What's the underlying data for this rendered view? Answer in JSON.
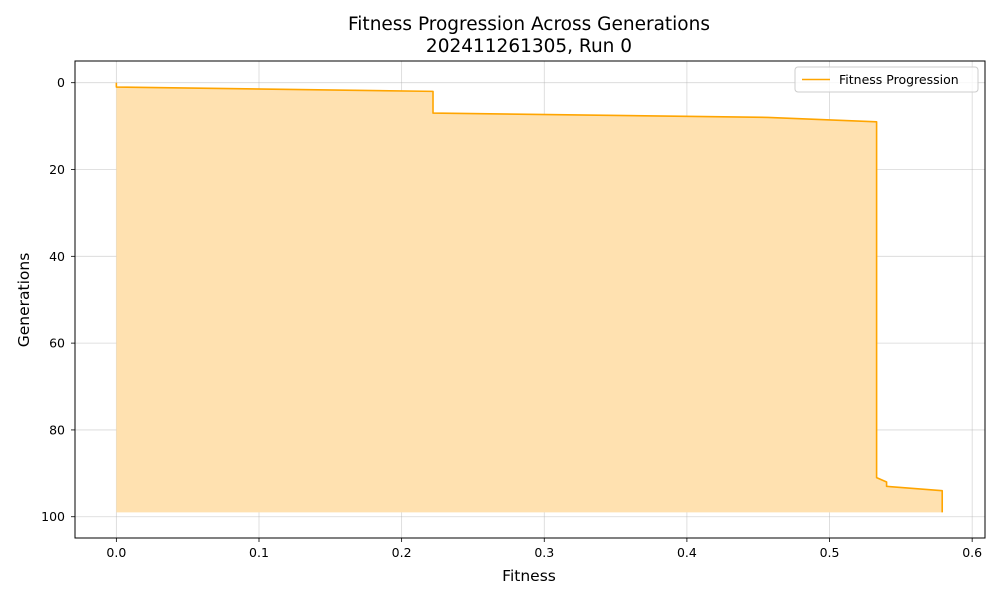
{
  "chart_data": {
    "type": "area",
    "title": "Fitness Progression Across Generations",
    "subtitle": "202411261305, Run 0",
    "xlabel": "Fitness",
    "ylabel": "Generations",
    "xlim": [
      -0.029,
      0.609
    ],
    "ylim": [
      104.9,
      -5.0
    ],
    "y_inverted": true,
    "x_ticks": [
      0.0,
      0.1,
      0.2,
      0.3,
      0.4,
      0.5,
      0.6
    ],
    "x_tick_labels": [
      "0.0",
      "0.1",
      "0.2",
      "0.3",
      "0.4",
      "0.5",
      "0.6"
    ],
    "y_ticks": [
      0,
      20,
      40,
      60,
      80,
      100
    ],
    "y_tick_labels": [
      "0",
      "20",
      "40",
      "60",
      "80",
      "100"
    ],
    "grid": true,
    "legend_position": "upper right",
    "fill_baseline_generation": 99,
    "series": [
      {
        "name": "Fitness Progression",
        "color": "#ffa500",
        "fill_color": "#ffe1b0",
        "points": [
          {
            "fitness": 0.0,
            "generation": 0
          },
          {
            "fitness": 0.0,
            "generation": 1
          },
          {
            "fitness": 0.222,
            "generation": 2
          },
          {
            "fitness": 0.222,
            "generation": 7
          },
          {
            "fitness": 0.457,
            "generation": 8
          },
          {
            "fitness": 0.533,
            "generation": 9
          },
          {
            "fitness": 0.533,
            "generation": 91
          },
          {
            "fitness": 0.54,
            "generation": 92
          },
          {
            "fitness": 0.54,
            "generation": 93
          },
          {
            "fitness": 0.579,
            "generation": 94
          },
          {
            "fitness": 0.579,
            "generation": 99
          }
        ]
      }
    ]
  }
}
